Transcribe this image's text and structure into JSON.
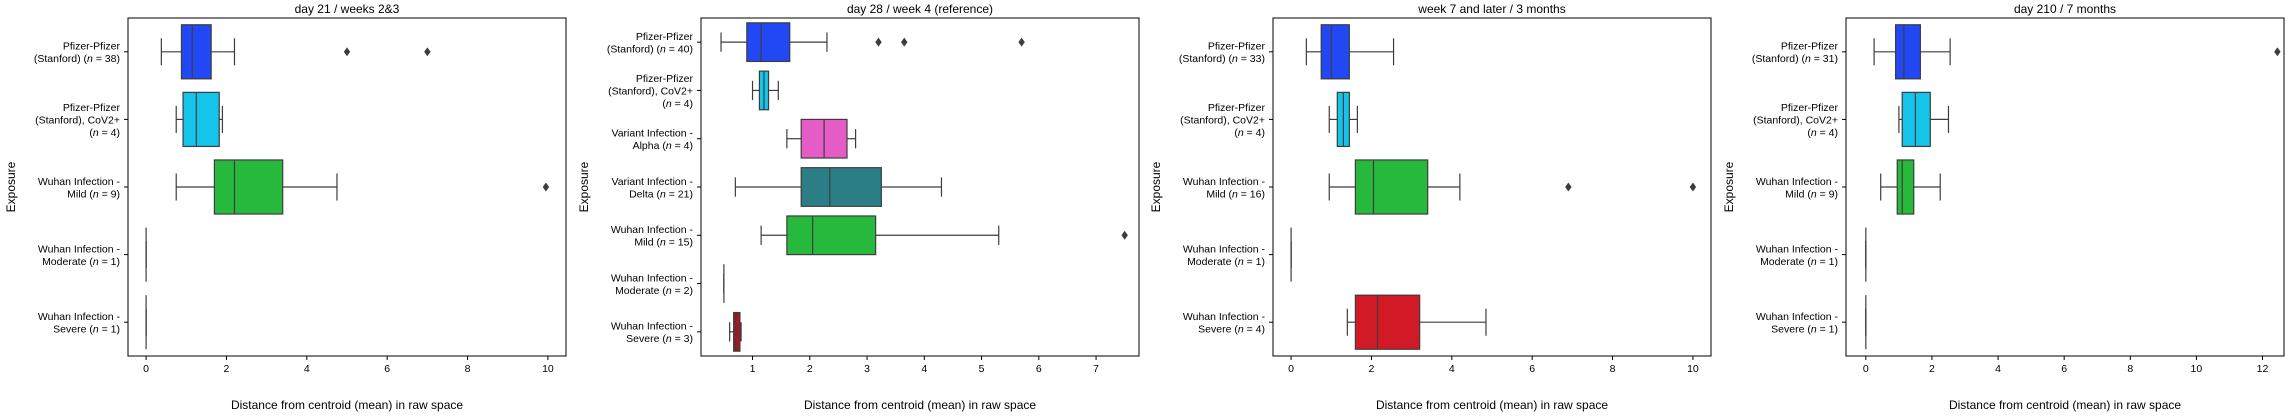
{
  "figure": {
    "background": "#ffffff",
    "box_edge_color": "#3d3d3d"
  },
  "chart_data": [
    {
      "type": "boxplot",
      "orientation": "horizontal",
      "title": "day 21 / weeks 2&3",
      "xlabel": "Distance from centroid (mean) in raw space",
      "ylabel": "Exposure",
      "xlim": [
        -0.45,
        10.45
      ],
      "xticks": [
        0,
        2,
        4,
        6,
        8,
        10
      ],
      "xtick_labels": [
        "0",
        "2",
        "4",
        "6",
        "8",
        "10"
      ],
      "categories": [
        {
          "lines": [
            "Pfizer-Pfizer",
            "(Stanford) (n = 38)"
          ],
          "color": "#2148f4",
          "stats": {
            "min": 0.38,
            "q1": 0.88,
            "median": 1.15,
            "q3": 1.62,
            "max": 2.2
          },
          "outliers": [
            5.0,
            7.0
          ]
        },
        {
          "lines": [
            "Pfizer-Pfizer",
            "(Stanford), CoV2+",
            "(n = 4)"
          ],
          "color": "#15c4ea",
          "stats": {
            "min": 0.75,
            "q1": 0.92,
            "median": 1.25,
            "q3": 1.82,
            "max": 1.9
          },
          "outliers": []
        },
        {
          "lines": [
            "Wuhan Infection -",
            "Mild (n = 9)"
          ],
          "color": "#26b93c",
          "stats": {
            "min": 0.75,
            "q1": 1.7,
            "median": 2.2,
            "q3": 3.4,
            "max": 4.75
          },
          "outliers": [
            9.95
          ]
        },
        {
          "lines": [
            "Wuhan Infection -",
            "Moderate (n = 1)"
          ],
          "color": "#7a7a7a",
          "stats": {
            "min": 0.0,
            "q1": 0.0,
            "median": 0.0,
            "q3": 0.0,
            "max": 0.0
          },
          "outliers": []
        },
        {
          "lines": [
            "Wuhan Infection -",
            "Severe (n = 1)"
          ],
          "color": "#7a7a7a",
          "stats": {
            "min": 0.0,
            "q1": 0.0,
            "median": 0.0,
            "q3": 0.0,
            "max": 0.0
          },
          "outliers": []
        }
      ]
    },
    {
      "type": "boxplot",
      "orientation": "horizontal",
      "title": "day 28 / week 4 (reference)",
      "xlabel": "Distance from centroid (mean) in raw space",
      "ylabel": "Exposure",
      "xlim": [
        0.1,
        7.75
      ],
      "xticks": [
        1,
        2,
        3,
        4,
        5,
        6,
        7
      ],
      "xtick_labels": [
        "1",
        "2",
        "3",
        "4",
        "5",
        "6",
        "7"
      ],
      "categories": [
        {
          "lines": [
            "Pfizer-Pfizer",
            "(Stanford) (n = 40)"
          ],
          "color": "#2148f4",
          "stats": {
            "min": 0.45,
            "q1": 0.9,
            "median": 1.15,
            "q3": 1.65,
            "max": 2.3
          },
          "outliers": [
            3.2,
            3.65,
            5.7
          ]
        },
        {
          "lines": [
            "Pfizer-Pfizer",
            "(Stanford), CoV2+",
            "(n = 4)"
          ],
          "color": "#15c4ea",
          "stats": {
            "min": 1.0,
            "q1": 1.12,
            "median": 1.2,
            "q3": 1.28,
            "max": 1.45
          },
          "outliers": []
        },
        {
          "lines": [
            "Variant Infection -",
            "Alpha (n = 4)"
          ],
          "color": "#e55cc6",
          "stats": {
            "min": 1.6,
            "q1": 1.85,
            "median": 2.25,
            "q3": 2.65,
            "max": 2.8
          },
          "outliers": []
        },
        {
          "lines": [
            "Variant Infection -",
            "Delta (n = 21)"
          ],
          "color": "#2b7e86",
          "stats": {
            "min": 0.7,
            "q1": 1.85,
            "median": 2.35,
            "q3": 3.25,
            "max": 4.3
          },
          "outliers": []
        },
        {
          "lines": [
            "Wuhan Infection -",
            "Mild (n = 15)"
          ],
          "color": "#26b93c",
          "stats": {
            "min": 1.15,
            "q1": 1.6,
            "median": 2.05,
            "q3": 3.15,
            "max": 5.3
          },
          "outliers": [
            7.5
          ]
        },
        {
          "lines": [
            "Wuhan Infection -",
            "Moderate (n = 2)"
          ],
          "color": "#7a7a7a",
          "stats": {
            "min": 0.5,
            "q1": 0.5,
            "median": 0.5,
            "q3": 0.5,
            "max": 0.5
          },
          "outliers": []
        },
        {
          "lines": [
            "Wuhan Infection -",
            "Severe (n = 3)"
          ],
          "color": "#b1121f",
          "stats": {
            "min": 0.6,
            "q1": 0.67,
            "median": 0.71,
            "q3": 0.78,
            "max": 0.8
          },
          "outliers": []
        }
      ]
    },
    {
      "type": "boxplot",
      "orientation": "horizontal",
      "title": "week 7 and later / 3 months",
      "xlabel": "Distance from centroid (mean) in raw space",
      "ylabel": "Exposure",
      "xlim": [
        -0.45,
        10.45
      ],
      "xticks": [
        0,
        2,
        4,
        6,
        8,
        10
      ],
      "xtick_labels": [
        "0",
        "2",
        "4",
        "6",
        "8",
        "10"
      ],
      "categories": [
        {
          "lines": [
            "Pfizer-Pfizer",
            "(Stanford) (n = 33)"
          ],
          "color": "#2148f4",
          "stats": {
            "min": 0.38,
            "q1": 0.75,
            "median": 1.0,
            "q3": 1.45,
            "max": 2.55
          },
          "outliers": []
        },
        {
          "lines": [
            "Pfizer-Pfizer",
            "(Stanford), CoV2+",
            "(n = 4)"
          ],
          "color": "#15c4ea",
          "stats": {
            "min": 0.95,
            "q1": 1.15,
            "median": 1.3,
            "q3": 1.45,
            "max": 1.65
          },
          "outliers": []
        },
        {
          "lines": [
            "Wuhan Infection -",
            "Mild (n = 16)"
          ],
          "color": "#26b93c",
          "stats": {
            "min": 0.95,
            "q1": 1.6,
            "median": 2.05,
            "q3": 3.4,
            "max": 4.2
          },
          "outliers": [
            6.9,
            10.0
          ]
        },
        {
          "lines": [
            "Wuhan Infection -",
            "Moderate (n = 1)"
          ],
          "color": "#7a7a7a",
          "stats": {
            "min": 0.0,
            "q1": 0.0,
            "median": 0.0,
            "q3": 0.0,
            "max": 0.0
          },
          "outliers": []
        },
        {
          "lines": [
            "Wuhan Infection -",
            "Severe (n = 4)"
          ],
          "color": "#d11a26",
          "stats": {
            "min": 1.4,
            "q1": 1.6,
            "median": 2.15,
            "q3": 3.2,
            "max": 4.85
          },
          "outliers": []
        }
      ]
    },
    {
      "type": "boxplot",
      "orientation": "horizontal",
      "title": "day 210 / 7 months",
      "xlabel": "Distance from centroid (mean) in raw space",
      "ylabel": "Exposure",
      "xlim": [
        -0.6,
        12.65
      ],
      "xticks": [
        0,
        2,
        4,
        6,
        8,
        10,
        12
      ],
      "xtick_labels": [
        "0",
        "2",
        "4",
        "6",
        "8",
        "10",
        "12"
      ],
      "categories": [
        {
          "lines": [
            "Pfizer-Pfizer",
            "(Stanford) (n = 31)"
          ],
          "color": "#2148f4",
          "stats": {
            "min": 0.25,
            "q1": 0.9,
            "median": 1.15,
            "q3": 1.65,
            "max": 2.55
          },
          "outliers": [
            12.45
          ]
        },
        {
          "lines": [
            "Pfizer-Pfizer",
            "(Stanford), CoV2+",
            "(n = 4)"
          ],
          "color": "#15c4ea",
          "stats": {
            "min": 1.0,
            "q1": 1.1,
            "median": 1.5,
            "q3": 1.95,
            "max": 2.5
          },
          "outliers": []
        },
        {
          "lines": [
            "Wuhan Infection -",
            "Mild (n = 9)"
          ],
          "color": "#26b93c",
          "stats": {
            "min": 0.45,
            "q1": 0.95,
            "median": 1.1,
            "q3": 1.45,
            "max": 2.25
          },
          "outliers": []
        },
        {
          "lines": [
            "Wuhan Infection -",
            "Moderate (n = 1)"
          ],
          "color": "#7a7a7a",
          "stats": {
            "min": 0.0,
            "q1": 0.0,
            "median": 0.0,
            "q3": 0.0,
            "max": 0.0
          },
          "outliers": []
        },
        {
          "lines": [
            "Wuhan Infection -",
            "Severe (n = 1)"
          ],
          "color": "#7a7a7a",
          "stats": {
            "min": 0.0,
            "q1": 0.0,
            "median": 0.0,
            "q3": 0.0,
            "max": 0.0
          },
          "outliers": []
        }
      ]
    }
  ]
}
